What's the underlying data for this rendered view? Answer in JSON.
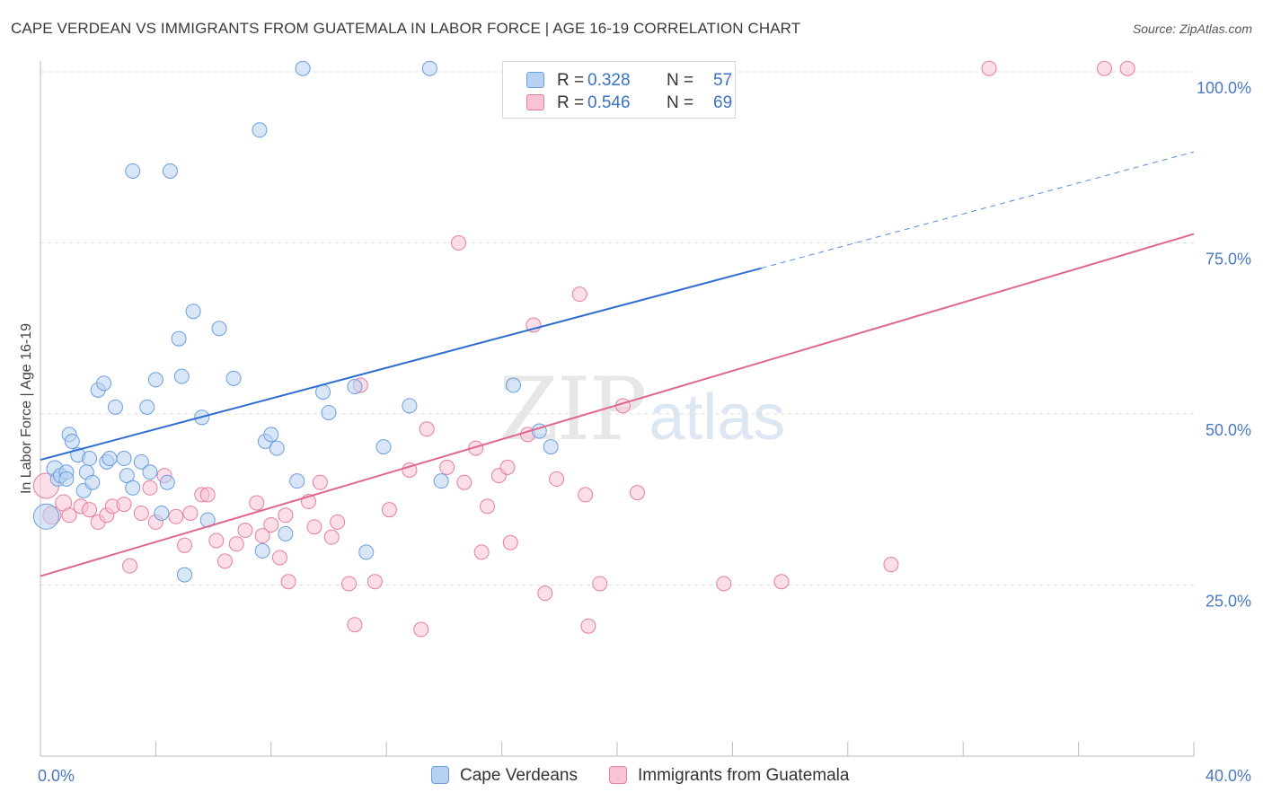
{
  "title": "CAPE VERDEAN VS IMMIGRANTS FROM GUATEMALA IN LABOR FORCE | AGE 16-19 CORRELATION CHART",
  "source": "Source: ZipAtlas.com",
  "watermark": {
    "zip": "ZIP",
    "atlas": "atlas"
  },
  "legend": {
    "rows": [
      {
        "r_label": "R =",
        "r_value": "0.328",
        "n_label": "N =",
        "n_value": "57"
      },
      {
        "r_label": "R =",
        "r_value": "0.546",
        "n_label": "N =",
        "n_value": "69"
      }
    ]
  },
  "bottom_legend": {
    "series1": "Cape Verdeans",
    "series2": "Immigrants from Guatemala"
  },
  "chart_data": {
    "type": "scatter",
    "title": "CAPE VERDEAN VS IMMIGRANTS FROM GUATEMALA IN LABOR FORCE | AGE 16-19 CORRELATION CHART",
    "xlabel": "",
    "ylabel": "In Labor Force | Age 16-19",
    "xlim": [
      0,
      40
    ],
    "ylim": [
      0,
      102
    ],
    "x_tick_labels": [
      "0.0%",
      "40.0%"
    ],
    "y_tick_labels": [
      {
        "value": 25,
        "label": "25.0%"
      },
      {
        "value": 50,
        "label": "50.0%"
      },
      {
        "value": 75,
        "label": "75.0%"
      },
      {
        "value": 100,
        "label": "100.0%"
      }
    ],
    "grid": true,
    "colors": {
      "series1": "#6a9ee0",
      "series1_fill": "#b8d1f3",
      "series2": "#e87d9f",
      "series2_fill": "#f8c3d3",
      "line1": "#2f6ed0",
      "line2": "#e0678f",
      "tick": "#4a78c2"
    },
    "series": [
      {
        "name": "Cape Verdeans",
        "trend": {
          "x": [
            0,
            25
          ],
          "y": [
            43.3,
            71.3
          ],
          "dashed_to": [
            40,
            88.3
          ]
        },
        "points": [
          [
            0.2,
            35.0,
            14
          ],
          [
            0.5,
            42,
            9
          ],
          [
            0.6,
            40.5,
            8
          ],
          [
            0.7,
            41,
            8
          ],
          [
            0.9,
            41.5,
            8
          ],
          [
            0.9,
            40.5,
            8
          ],
          [
            1.0,
            47,
            8
          ],
          [
            1.1,
            46,
            8
          ],
          [
            1.3,
            44,
            8
          ],
          [
            1.5,
            38.8,
            8
          ],
          [
            1.6,
            41.5,
            8
          ],
          [
            1.7,
            43.5,
            8
          ],
          [
            1.8,
            40,
            8
          ],
          [
            2.0,
            53.5,
            8
          ],
          [
            2.2,
            54.5,
            8
          ],
          [
            2.3,
            43,
            8
          ],
          [
            2.4,
            43.5,
            8
          ],
          [
            2.6,
            51,
            8
          ],
          [
            2.9,
            43.5,
            8
          ],
          [
            3.0,
            41,
            8
          ],
          [
            3.2,
            85.5,
            8
          ],
          [
            3.2,
            39.2,
            8
          ],
          [
            3.5,
            43,
            8
          ],
          [
            3.7,
            51,
            8
          ],
          [
            3.8,
            41.5,
            8
          ],
          [
            4.0,
            55,
            8
          ],
          [
            4.2,
            35.5,
            8
          ],
          [
            4.4,
            40,
            8
          ],
          [
            4.5,
            85.5,
            8
          ],
          [
            4.8,
            61,
            8
          ],
          [
            4.9,
            55.5,
            8
          ],
          [
            5.0,
            26.5,
            8
          ],
          [
            5.3,
            65,
            8
          ],
          [
            5.6,
            49.5,
            8
          ],
          [
            5.8,
            34.5,
            8
          ],
          [
            6.2,
            62.5,
            8
          ],
          [
            6.7,
            55.2,
            8
          ],
          [
            7.6,
            91.5,
            8
          ],
          [
            7.7,
            30,
            8
          ],
          [
            7.8,
            46,
            8
          ],
          [
            8.0,
            47,
            8
          ],
          [
            8.2,
            45,
            8
          ],
          [
            8.5,
            32.5,
            8
          ],
          [
            8.9,
            40.2,
            8
          ],
          [
            9.1,
            100.5,
            8
          ],
          [
            9.8,
            53.2,
            8
          ],
          [
            10.0,
            50.2,
            8
          ],
          [
            10.9,
            54,
            8
          ],
          [
            11.3,
            29.8,
            8
          ],
          [
            11.9,
            45.2,
            8
          ],
          [
            12.8,
            51.2,
            8
          ],
          [
            13.5,
            100.5,
            8
          ],
          [
            13.9,
            40.2,
            8
          ],
          [
            16.4,
            54.2,
            8
          ],
          [
            17.3,
            47.5,
            8
          ],
          [
            17.7,
            45.2,
            8
          ]
        ]
      },
      {
        "name": "Immigrants from Guatemala",
        "trend": {
          "x": [
            0,
            40
          ],
          "y": [
            26.3,
            76.3
          ]
        },
        "points": [
          [
            0.2,
            39.5,
            14
          ],
          [
            0.4,
            35.2,
            10
          ],
          [
            0.8,
            37,
            9
          ],
          [
            1.0,
            35.2,
            8
          ],
          [
            1.4,
            36.5,
            8
          ],
          [
            1.7,
            36,
            8
          ],
          [
            2.0,
            34.2,
            8
          ],
          [
            2.3,
            35.2,
            8
          ],
          [
            2.5,
            36.5,
            8
          ],
          [
            2.9,
            36.8,
            8
          ],
          [
            3.1,
            27.8,
            8
          ],
          [
            3.5,
            35.5,
            8
          ],
          [
            3.8,
            39.2,
            8
          ],
          [
            4.0,
            34.2,
            8
          ],
          [
            4.3,
            41,
            8
          ],
          [
            4.7,
            35,
            8
          ],
          [
            5.0,
            30.8,
            8
          ],
          [
            5.2,
            35.5,
            8
          ],
          [
            5.6,
            38.2,
            8
          ],
          [
            5.8,
            38.2,
            8
          ],
          [
            6.1,
            31.5,
            8
          ],
          [
            6.4,
            28.5,
            8
          ],
          [
            6.8,
            31,
            8
          ],
          [
            7.1,
            33,
            8
          ],
          [
            7.5,
            37,
            8
          ],
          [
            7.7,
            32.2,
            8
          ],
          [
            8.0,
            33.8,
            8
          ],
          [
            8.3,
            29,
            8
          ],
          [
            8.5,
            35.2,
            8
          ],
          [
            8.6,
            25.5,
            8
          ],
          [
            9.3,
            37.2,
            8
          ],
          [
            9.5,
            33.5,
            8
          ],
          [
            9.7,
            40,
            8
          ],
          [
            10.1,
            32,
            8
          ],
          [
            10.3,
            34.2,
            8
          ],
          [
            10.7,
            25.2,
            8
          ],
          [
            10.9,
            19.2,
            8
          ],
          [
            11.1,
            54.2,
            8
          ],
          [
            11.6,
            25.5,
            8
          ],
          [
            12.1,
            36,
            8
          ],
          [
            12.8,
            41.8,
            8
          ],
          [
            13.2,
            18.5,
            8
          ],
          [
            13.4,
            47.8,
            8
          ],
          [
            14.1,
            42.2,
            8
          ],
          [
            14.5,
            75,
            8
          ],
          [
            14.7,
            40,
            8
          ],
          [
            15.1,
            45,
            8
          ],
          [
            15.3,
            29.8,
            8
          ],
          [
            15.5,
            36.5,
            8
          ],
          [
            15.9,
            41,
            8
          ],
          [
            16.2,
            42.2,
            8
          ],
          [
            16.3,
            31.2,
            8
          ],
          [
            16.9,
            47,
            8
          ],
          [
            17.1,
            63,
            8
          ],
          [
            17.5,
            23.8,
            8
          ],
          [
            17.9,
            40.5,
            8
          ],
          [
            18.7,
            67.5,
            8
          ],
          [
            18.9,
            38.2,
            8
          ],
          [
            19.4,
            25.2,
            8
          ],
          [
            19.0,
            19,
            8
          ],
          [
            20.2,
            51.2,
            8
          ],
          [
            20.7,
            38.5,
            8
          ],
          [
            23.7,
            25.2,
            8
          ],
          [
            25.7,
            25.5,
            8
          ],
          [
            29.5,
            28,
            8
          ],
          [
            32.9,
            100.5,
            8
          ],
          [
            36.9,
            100.5,
            8
          ],
          [
            37.7,
            100.5,
            8
          ]
        ]
      }
    ]
  }
}
